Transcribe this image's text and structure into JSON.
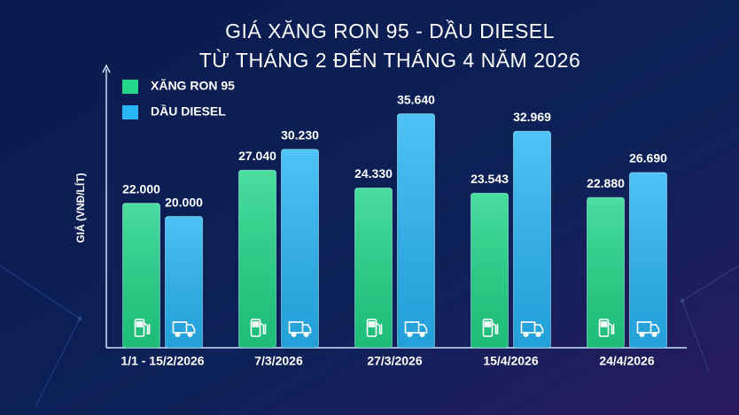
{
  "chart_data": {
    "type": "bar",
    "title": [
      "GIÁ XĂNG RON 95 - DẦU DIESEL",
      "TỪ THÁNG 2 ĐẾN THÁNG 4 NĂM 2026"
    ],
    "y_label": "GIÁ (VNĐ/LÍT)",
    "categories": [
      "1/1 - 15/2/2026",
      "7/3/2026",
      "27/3/2026",
      "15/4/2026",
      "24/4/2026"
    ],
    "series": [
      {
        "name": "XĂNG RON 95",
        "color": "#22d68a",
        "values": [
          22000,
          27040,
          24330,
          23543,
          22880
        ],
        "value_labels": [
          "22.000",
          "27.040",
          "24.330",
          "23.543",
          "22.880"
        ]
      },
      {
        "name": "DẦU DIESEL",
        "color": "#29b6f6",
        "values": [
          20000,
          30230,
          35640,
          32969,
          26690
        ],
        "value_labels": [
          "20.000",
          "30.230",
          "35.640",
          "32.969",
          "26.690"
        ]
      }
    ],
    "ylim": [
      0,
      43000
    ]
  }
}
